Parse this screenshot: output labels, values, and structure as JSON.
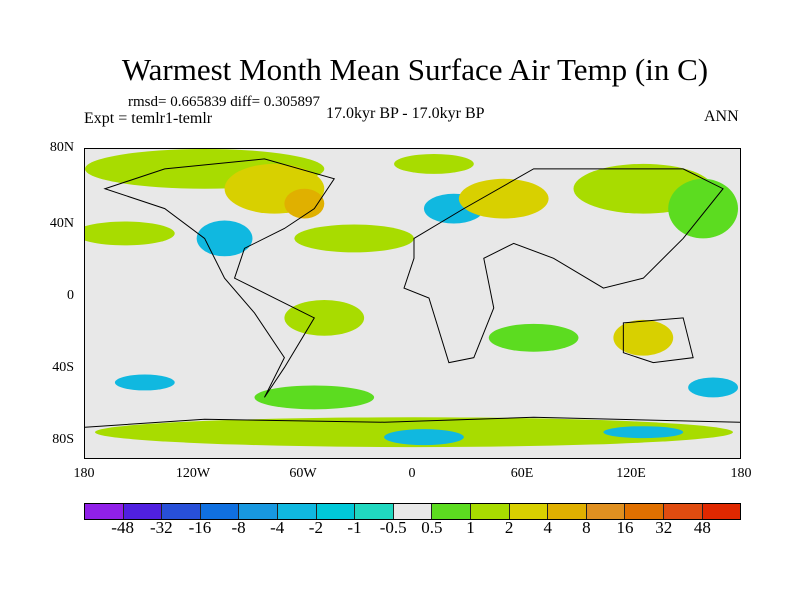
{
  "title": "Warmest Month Mean Surface Air Temp (in C)",
  "stats": "rmsd= 0.665839 diff= 0.305897",
  "experiment": "Expt = temlr1-temlr",
  "period": "17.0kyr BP - 17.0kyr BP",
  "season": "ANN",
  "lat_labels": [
    "80N",
    "40N",
    "0",
    "40S",
    "80S"
  ],
  "lon_labels": [
    "180",
    "120W",
    "60W",
    "0",
    "60E",
    "120E",
    "180"
  ],
  "colorbar": {
    "labels": [
      "-48",
      "-32",
      "-16",
      "-8",
      "-4",
      "-2",
      "-1",
      "-0.5",
      "0.5",
      "1",
      "2",
      "4",
      "8",
      "16",
      "32",
      "48"
    ],
    "colors": [
      "#9020e8",
      "#5020e0",
      "#2850d8",
      "#1070e0",
      "#1898e0",
      "#10b8e0",
      "#00c8d8",
      "#20d8c0",
      "#e8e8e8",
      "#5cdc20",
      "#a8dc00",
      "#d8d000",
      "#e0b000",
      "#e09020",
      "#e07000",
      "#e04c10",
      "#e02800"
    ]
  }
}
